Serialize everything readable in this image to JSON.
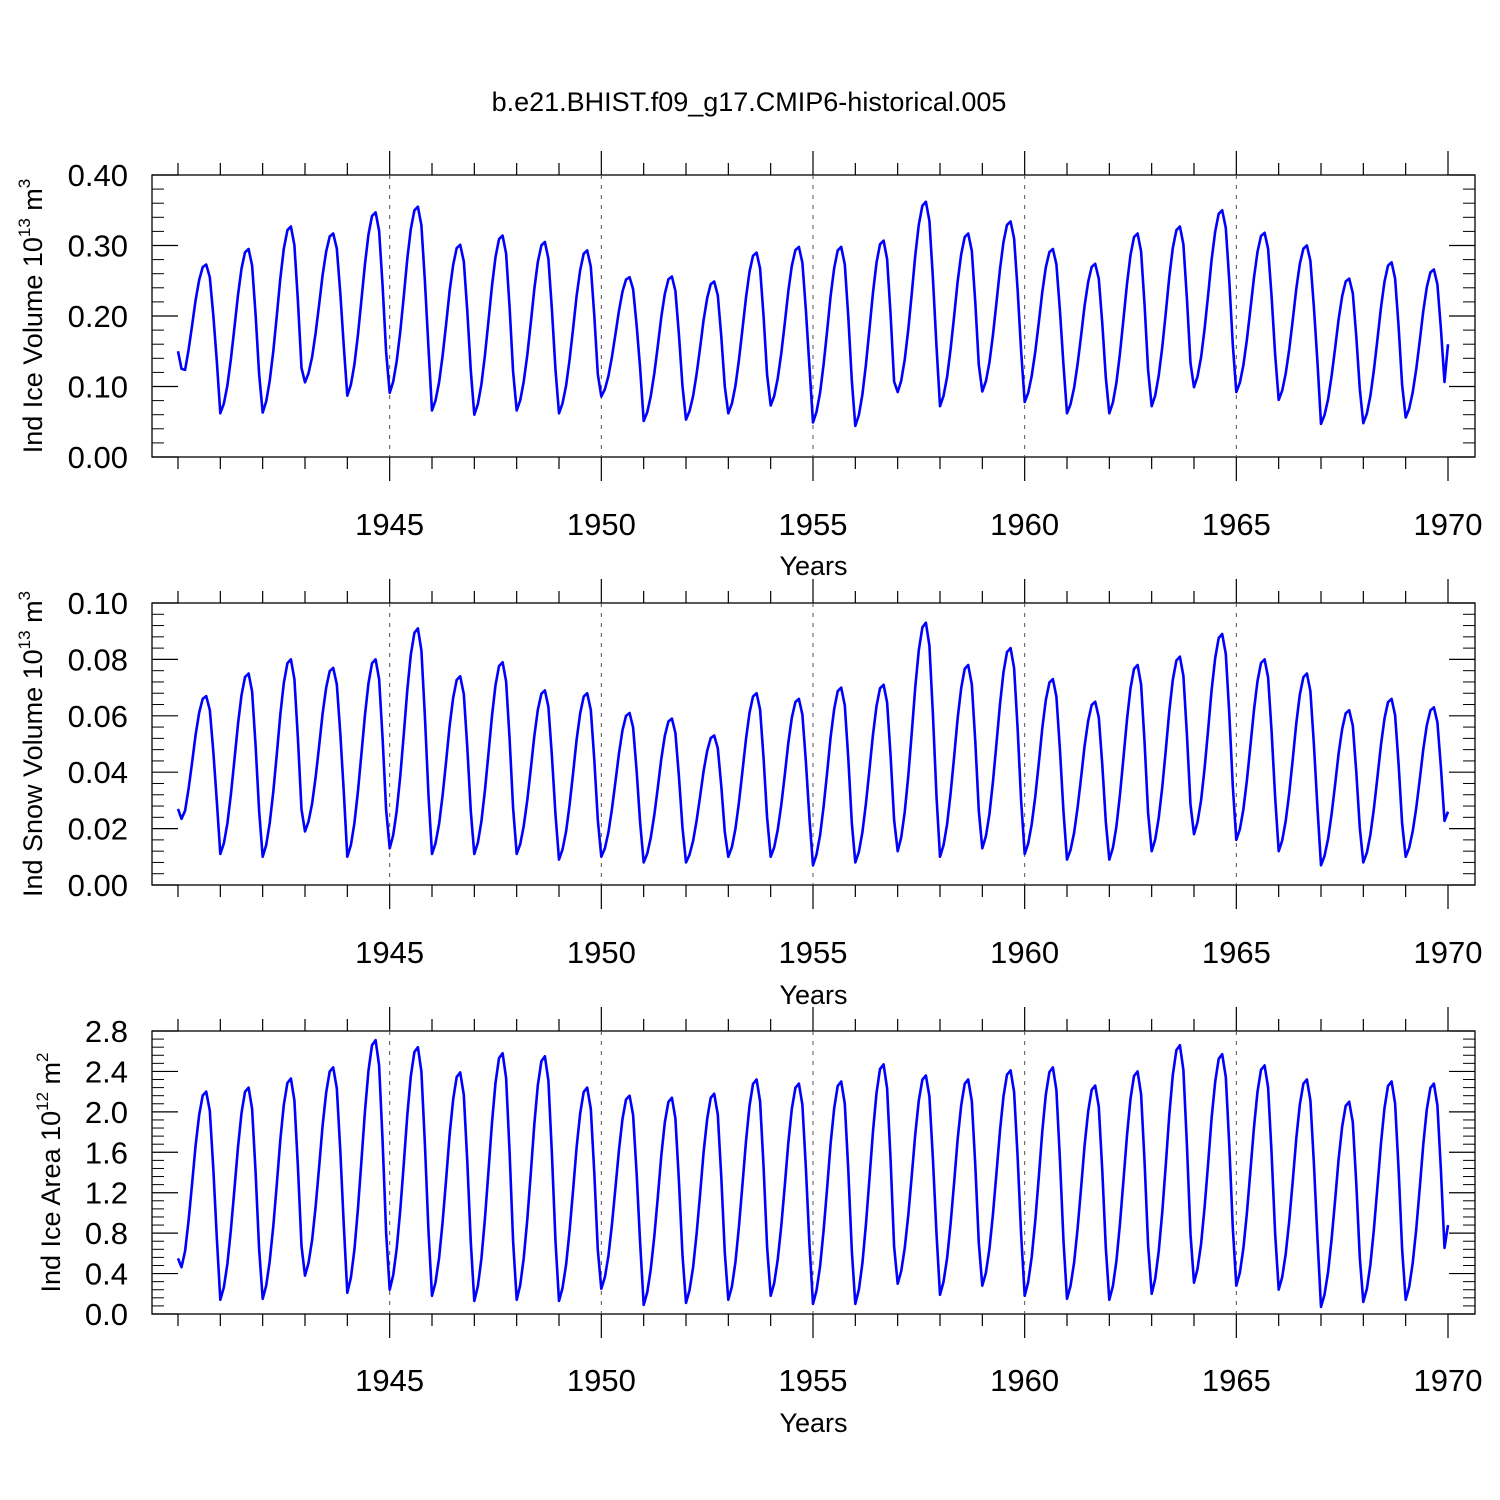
{
  "title": "b.e21.BHIST.f09_g17.CMIP6-historical.005",
  "chart_data": [
    {
      "type": "line",
      "name": "ice-volume",
      "ylabel_main": "Ind Ice Volume 10",
      "ylabel_exp": "13",
      "ylabel_unit": " m",
      "ylabel_unit_exp": "3",
      "xlabel": "Years",
      "xlim": [
        1940.0,
        1970.0
      ],
      "ylim": [
        0.0,
        0.4
      ],
      "xticks": [
        1945,
        1950,
        1955,
        1960,
        1965,
        1970
      ],
      "yticks": [
        0.0,
        0.1,
        0.2,
        0.3,
        0.4
      ],
      "ytick_labels": [
        "0.00",
        "0.10",
        "0.20",
        "0.30",
        "0.40"
      ],
      "line_color": "#0000ff",
      "annual": {
        "max": [
          0.273,
          0.295,
          0.327,
          0.317,
          0.347,
          0.355,
          0.301,
          0.314,
          0.305,
          0.293,
          0.255,
          0.256,
          0.249,
          0.29,
          0.298,
          0.298,
          0.307,
          0.362,
          0.317,
          0.334,
          0.295,
          0.274,
          0.317,
          0.327,
          0.35,
          0.318,
          0.3,
          0.253,
          0.276,
          0.266
        ],
        "min": [
          0.093,
          0.062,
          0.063,
          0.106,
          0.087,
          0.091,
          0.066,
          0.06,
          0.066,
          0.062,
          0.086,
          0.051,
          0.053,
          0.062,
          0.073,
          0.049,
          0.044,
          0.092,
          0.072,
          0.093,
          0.078,
          0.062,
          0.062,
          0.072,
          0.099,
          0.092,
          0.081,
          0.047,
          0.048,
          0.056
        ],
        "start": 0.15,
        "end": 0.16
      }
    },
    {
      "type": "line",
      "name": "snow-volume",
      "ylabel_main": "Ind Snow Volume 10",
      "ylabel_exp": "13",
      "ylabel_unit": " m",
      "ylabel_unit_exp": "3",
      "xlabel": "Years",
      "xlim": [
        1940.0,
        1970.0
      ],
      "ylim": [
        0.0,
        0.1
      ],
      "xticks": [
        1945,
        1950,
        1955,
        1960,
        1965,
        1970
      ],
      "yticks": [
        0.0,
        0.02,
        0.04,
        0.06,
        0.08,
        0.1
      ],
      "ytick_labels": [
        "0.00",
        "0.02",
        "0.04",
        "0.06",
        "0.08",
        "0.10"
      ],
      "line_color": "#0000ff",
      "annual": {
        "max": [
          0.067,
          0.075,
          0.08,
          0.077,
          0.08,
          0.091,
          0.074,
          0.079,
          0.069,
          0.068,
          0.061,
          0.059,
          0.053,
          0.068,
          0.066,
          0.07,
          0.071,
          0.093,
          0.078,
          0.084,
          0.073,
          0.065,
          0.078,
          0.081,
          0.089,
          0.08,
          0.075,
          0.062,
          0.066,
          0.063
        ],
        "min": [
          0.018,
          0.011,
          0.01,
          0.019,
          0.01,
          0.013,
          0.011,
          0.011,
          0.011,
          0.009,
          0.01,
          0.008,
          0.008,
          0.01,
          0.01,
          0.007,
          0.008,
          0.012,
          0.01,
          0.013,
          0.011,
          0.009,
          0.009,
          0.012,
          0.018,
          0.016,
          0.012,
          0.007,
          0.008,
          0.01
        ],
        "start": 0.027,
        "end": 0.026
      }
    },
    {
      "type": "line",
      "name": "ice-area",
      "ylabel_main": "Ind Ice Area 10",
      "ylabel_exp": "12",
      "ylabel_unit": " m",
      "ylabel_unit_exp": "2",
      "xlabel": "Years",
      "xlim": [
        1940.0,
        1970.0
      ],
      "ylim": [
        0.0,
        2.8
      ],
      "xticks": [
        1945,
        1950,
        1955,
        1960,
        1965,
        1970
      ],
      "yticks": [
        0.0,
        0.4,
        0.8,
        1.2,
        1.6,
        2.0,
        2.4,
        2.8
      ],
      "ytick_labels": [
        "0.0",
        "0.4",
        "0.8",
        "1.2",
        "1.6",
        "2.0",
        "2.4",
        "2.8"
      ],
      "line_color": "#0000ff",
      "annual": {
        "max": [
          2.2,
          2.24,
          2.33,
          2.44,
          2.71,
          2.64,
          2.39,
          2.58,
          2.55,
          2.24,
          2.16,
          2.14,
          2.18,
          2.32,
          2.28,
          2.3,
          2.47,
          2.36,
          2.32,
          2.41,
          2.44,
          2.26,
          2.4,
          2.66,
          2.57,
          2.46,
          2.32,
          2.1,
          2.3,
          2.28
        ],
        "min": [
          0.3,
          0.14,
          0.15,
          0.38,
          0.21,
          0.24,
          0.18,
          0.13,
          0.14,
          0.13,
          0.25,
          0.09,
          0.11,
          0.14,
          0.18,
          0.1,
          0.1,
          0.3,
          0.19,
          0.28,
          0.18,
          0.15,
          0.14,
          0.2,
          0.31,
          0.28,
          0.24,
          0.07,
          0.12,
          0.14
        ],
        "start": 0.55,
        "end": 0.88
      }
    }
  ]
}
